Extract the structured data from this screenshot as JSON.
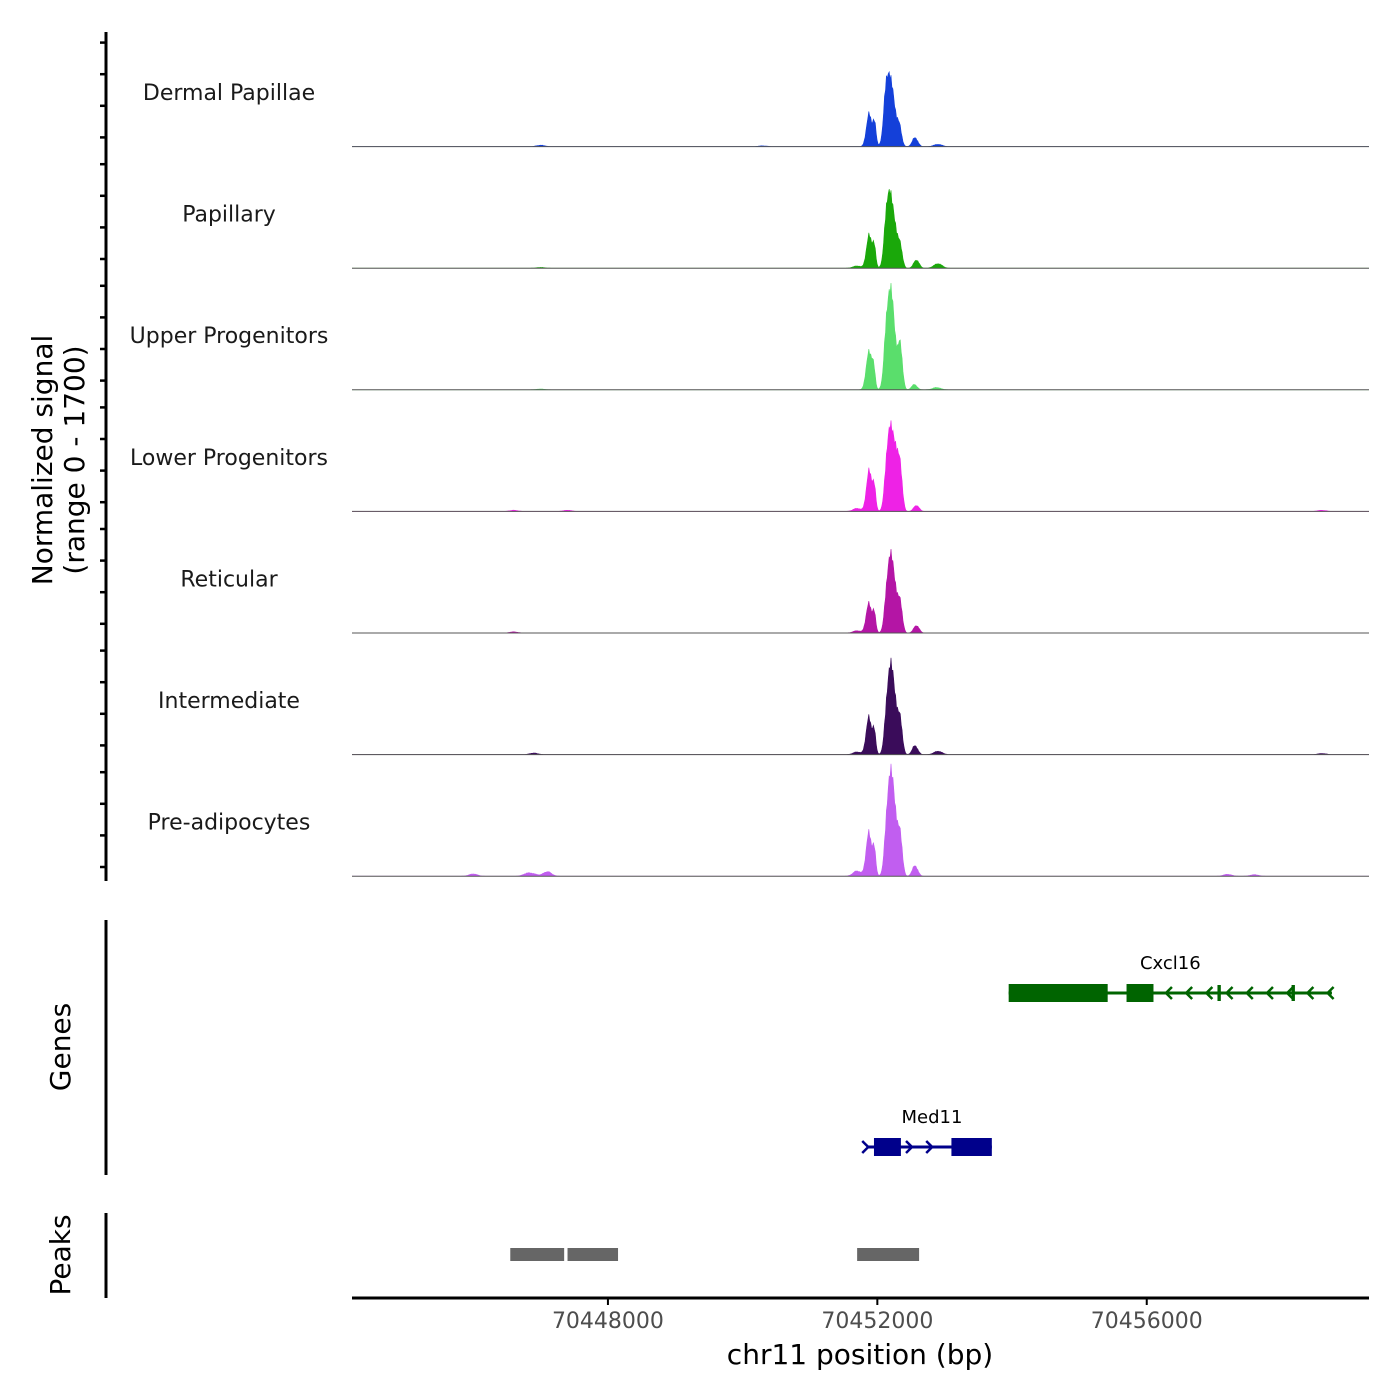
{
  "chart_data": {
    "type": "area",
    "title": "",
    "region": {
      "chromosome": "chr11",
      "xlim": [
        70444200,
        70459300
      ]
    },
    "xlabel": "chr11 position (bp)",
    "x_ticks": [
      70448000,
      70452000,
      70456000
    ],
    "x_tick_labels": [
      "70448000",
      "70452000",
      "70456000"
    ],
    "coverage_ylabel_line1": "Normalized signal",
    "coverage_ylabel_line2": "(range 0 - 1700)",
    "signal_range": [
      0,
      1700
    ],
    "genes_label": "Genes",
    "peaks_label": "Peaks",
    "series": [
      {
        "name": "Dermal Papillae",
        "color": "#1440d9",
        "peaks": [
          [
            70451875,
            420,
            38
          ],
          [
            70451955,
            320,
            25
          ],
          [
            70452150,
            960,
            45
          ],
          [
            70452240,
            560,
            40
          ],
          [
            70452330,
            260,
            32
          ],
          [
            70452560,
            120,
            40
          ],
          [
            70452900,
            30,
            60
          ],
          [
            70447000,
            18,
            60
          ],
          [
            70450300,
            10,
            60
          ]
        ]
      },
      {
        "name": "Papillary",
        "color": "#1aa80a",
        "peaks": [
          [
            70451875,
            420,
            38
          ],
          [
            70451950,
            300,
            25
          ],
          [
            70452160,
            980,
            45
          ],
          [
            70452250,
            600,
            40
          ],
          [
            70452340,
            300,
            32
          ],
          [
            70452580,
            110,
            40
          ],
          [
            70452900,
            60,
            60
          ],
          [
            70451700,
            30,
            60
          ],
          [
            70447000,
            10,
            60
          ]
        ]
      },
      {
        "name": "Upper Progenitors",
        "color": "#5ade6c",
        "peaks": [
          [
            70451870,
            480,
            38
          ],
          [
            70451940,
            330,
            25
          ],
          [
            70452160,
            1150,
            45
          ],
          [
            70452240,
            820,
            40
          ],
          [
            70452340,
            600,
            32
          ],
          [
            70452550,
            70,
            40
          ],
          [
            70452880,
            30,
            60
          ],
          [
            70447000,
            10,
            60
          ]
        ]
      },
      {
        "name": "Lower Progenitors",
        "color": "#ee22e6",
        "peaks": [
          [
            70451875,
            520,
            38
          ],
          [
            70451950,
            340,
            25
          ],
          [
            70452170,
            1020,
            45
          ],
          [
            70452260,
            820,
            40
          ],
          [
            70452340,
            560,
            32
          ],
          [
            70452580,
            80,
            40
          ],
          [
            70451700,
            40,
            60
          ],
          [
            70446600,
            15,
            60
          ],
          [
            70447400,
            15,
            60
          ],
          [
            70458600,
            15,
            60
          ]
        ]
      },
      {
        "name": "Reticular",
        "color": "#b415a5",
        "peaks": [
          [
            70451870,
            380,
            38
          ],
          [
            70451950,
            280,
            25
          ],
          [
            70452170,
            880,
            45
          ],
          [
            70452250,
            640,
            40
          ],
          [
            70452340,
            400,
            32
          ],
          [
            70452580,
            100,
            40
          ],
          [
            70451700,
            30,
            60
          ],
          [
            70446600,
            15,
            60
          ]
        ]
      },
      {
        "name": "Intermediate",
        "color": "#3a0c5a",
        "peaks": [
          [
            70451870,
            480,
            38
          ],
          [
            70451950,
            330,
            25
          ],
          [
            70452170,
            1000,
            45
          ],
          [
            70452250,
            760,
            40
          ],
          [
            70452340,
            460,
            32
          ],
          [
            70452560,
            120,
            40
          ],
          [
            70452900,
            45,
            60
          ],
          [
            70451700,
            35,
            60
          ],
          [
            70446900,
            20,
            60
          ],
          [
            70458600,
            15,
            60
          ]
        ]
      },
      {
        "name": "Pre-adipocytes",
        "color": "#c15ef0",
        "peaks": [
          [
            70451870,
            560,
            38
          ],
          [
            70451950,
            380,
            25
          ],
          [
            70452170,
            1150,
            45
          ],
          [
            70452250,
            900,
            40
          ],
          [
            70452340,
            540,
            32
          ],
          [
            70452560,
            140,
            40
          ],
          [
            70451700,
            70,
            60
          ],
          [
            70446000,
            30,
            60
          ],
          [
            70446800,
            35,
            60
          ],
          [
            70447100,
            60,
            60
          ],
          [
            70446900,
            25,
            60
          ],
          [
            70457200,
            25,
            60
          ],
          [
            70457600,
            20,
            60
          ]
        ]
      }
    ],
    "genes": [
      {
        "name": "Cxcl16",
        "strand": "-",
        "color": "#006400",
        "start": 70453950,
        "end": 70458750,
        "exons": [
          [
            70453950,
            70455420
          ],
          [
            70455700,
            70456100
          ]
        ],
        "thin_exons": [
          [
            70457050,
            70457100
          ],
          [
            70458150,
            70458200
          ]
        ]
      },
      {
        "name": "Med11",
        "strand": "+",
        "color": "#00008b",
        "start": 70451850,
        "end": 70453700,
        "exons": [
          [
            70451950,
            70452350
          ],
          [
            70453100,
            70453700
          ]
        ],
        "thin_exons": []
      }
    ],
    "peak_regions": [
      {
        "start": 70446550,
        "end": 70447350
      },
      {
        "start": 70447400,
        "end": 70448150
      },
      {
        "start": 70451700,
        "end": 70452620
      }
    ]
  }
}
